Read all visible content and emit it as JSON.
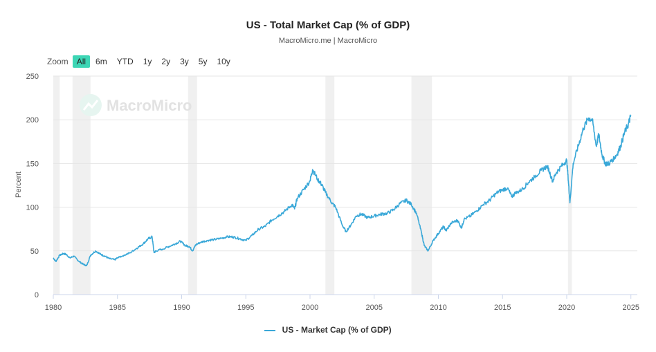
{
  "chart_data": {
    "type": "line",
    "title": "US - Total Market Cap (% of GDP)",
    "subtitle": "MacroMicro.me | MacroMicro",
    "watermark": "MacroMicro",
    "ylabel": "Percent",
    "xlabel": "",
    "ylim": [
      0,
      250
    ],
    "xlim": [
      1980,
      2025.5
    ],
    "y_ticks": [
      0,
      50,
      100,
      150,
      200,
      250
    ],
    "x_ticks": [
      1980,
      1985,
      1990,
      1995,
      2000,
      2005,
      2010,
      2015,
      2020,
      2025
    ],
    "grid": true,
    "legend": "bottom-center",
    "recessions": [
      [
        1980.0,
        1980.5
      ],
      [
        1981.5,
        1982.9
      ],
      [
        1990.5,
        1991.2
      ],
      [
        2001.2,
        2001.9
      ],
      [
        2007.9,
        2009.5
      ],
      [
        2020.1,
        2020.4
      ]
    ],
    "series": [
      {
        "name": "US - Market Cap (% of GDP)",
        "color": "#3aa8d8",
        "x": [
          1980.0,
          1980.2,
          1980.5,
          1980.8,
          1981.0,
          1981.3,
          1981.6,
          1982.0,
          1982.3,
          1982.6,
          1982.9,
          1983.3,
          1983.7,
          1984.0,
          1984.4,
          1984.8,
          1985.0,
          1985.5,
          1986.0,
          1986.5,
          1987.0,
          1987.4,
          1987.7,
          1987.85,
          1988.0,
          1988.5,
          1989.0,
          1989.5,
          1989.9,
          1990.3,
          1990.6,
          1990.85,
          1991.1,
          1991.5,
          1992.0,
          1992.5,
          1993.0,
          1993.5,
          1994.0,
          1994.5,
          1995.0,
          1995.5,
          1996.0,
          1996.5,
          1997.0,
          1997.5,
          1998.0,
          1998.6,
          1998.8,
          1999.0,
          1999.5,
          2000.0,
          2000.2,
          2000.6,
          2000.9,
          2001.2,
          2001.7,
          2002.0,
          2002.5,
          2002.8,
          2003.2,
          2003.6,
          2004.0,
          2004.5,
          2005.0,
          2005.5,
          2006.0,
          2006.5,
          2007.0,
          2007.5,
          2007.9,
          2008.3,
          2008.7,
          2008.9,
          2009.2,
          2009.6,
          2010.0,
          2010.4,
          2010.6,
          2011.0,
          2011.5,
          2011.8,
          2012.0,
          2012.5,
          2013.0,
          2013.5,
          2014.0,
          2014.5,
          2015.0,
          2015.4,
          2015.7,
          2016.0,
          2016.5,
          2017.0,
          2017.5,
          2018.0,
          2018.5,
          2018.9,
          2019.2,
          2019.6,
          2020.0,
          2020.15,
          2020.25,
          2020.5,
          2020.9,
          2021.3,
          2021.7,
          2022.0,
          2022.3,
          2022.5,
          2022.75,
          2023.0,
          2023.3,
          2023.6,
          2023.9,
          2024.2,
          2024.5,
          2024.8,
          2025.0
        ],
        "values": [
          42,
          38,
          45,
          47,
          46,
          42,
          44,
          38,
          35,
          33,
          45,
          50,
          46,
          44,
          41,
          40,
          42,
          45,
          48,
          53,
          58,
          64,
          66,
          48,
          50,
          52,
          55,
          58,
          61,
          56,
          55,
          50,
          57,
          60,
          62,
          63,
          64,
          66,
          66,
          64,
          62,
          68,
          75,
          78,
          85,
          90,
          95,
          103,
          98,
          110,
          120,
          130,
          143,
          132,
          126,
          117,
          105,
          100,
          80,
          72,
          80,
          90,
          92,
          88,
          90,
          92,
          93,
          97,
          104,
          108,
          103,
          93,
          70,
          56,
          50,
          62,
          70,
          78,
          73,
          82,
          85,
          76,
          86,
          90,
          96,
          103,
          108,
          116,
          120,
          122,
          112,
          116,
          120,
          128,
          135,
          142,
          147,
          130,
          140,
          147,
          154,
          126,
          105,
          150,
          170,
          190,
          202,
          200,
          170,
          183,
          160,
          150,
          150,
          155,
          160,
          170,
          185,
          195,
          205
        ]
      }
    ]
  }
}
